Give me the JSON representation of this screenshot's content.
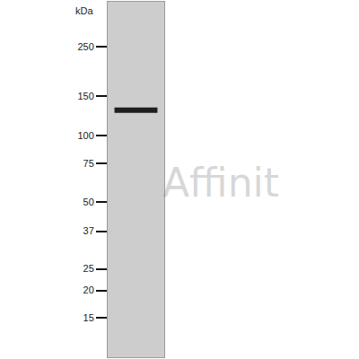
{
  "chart_data": {
    "type": "western_blot",
    "y_title": "kDa",
    "log": "y",
    "ylim": [
      10,
      400
    ],
    "yticks": [
      250,
      150,
      100,
      75,
      50,
      37,
      25,
      20,
      15
    ],
    "tick_labels": "y",
    "bands": [
      {
        "value": 130
      }
    ],
    "watermark": "Affinit"
  }
}
